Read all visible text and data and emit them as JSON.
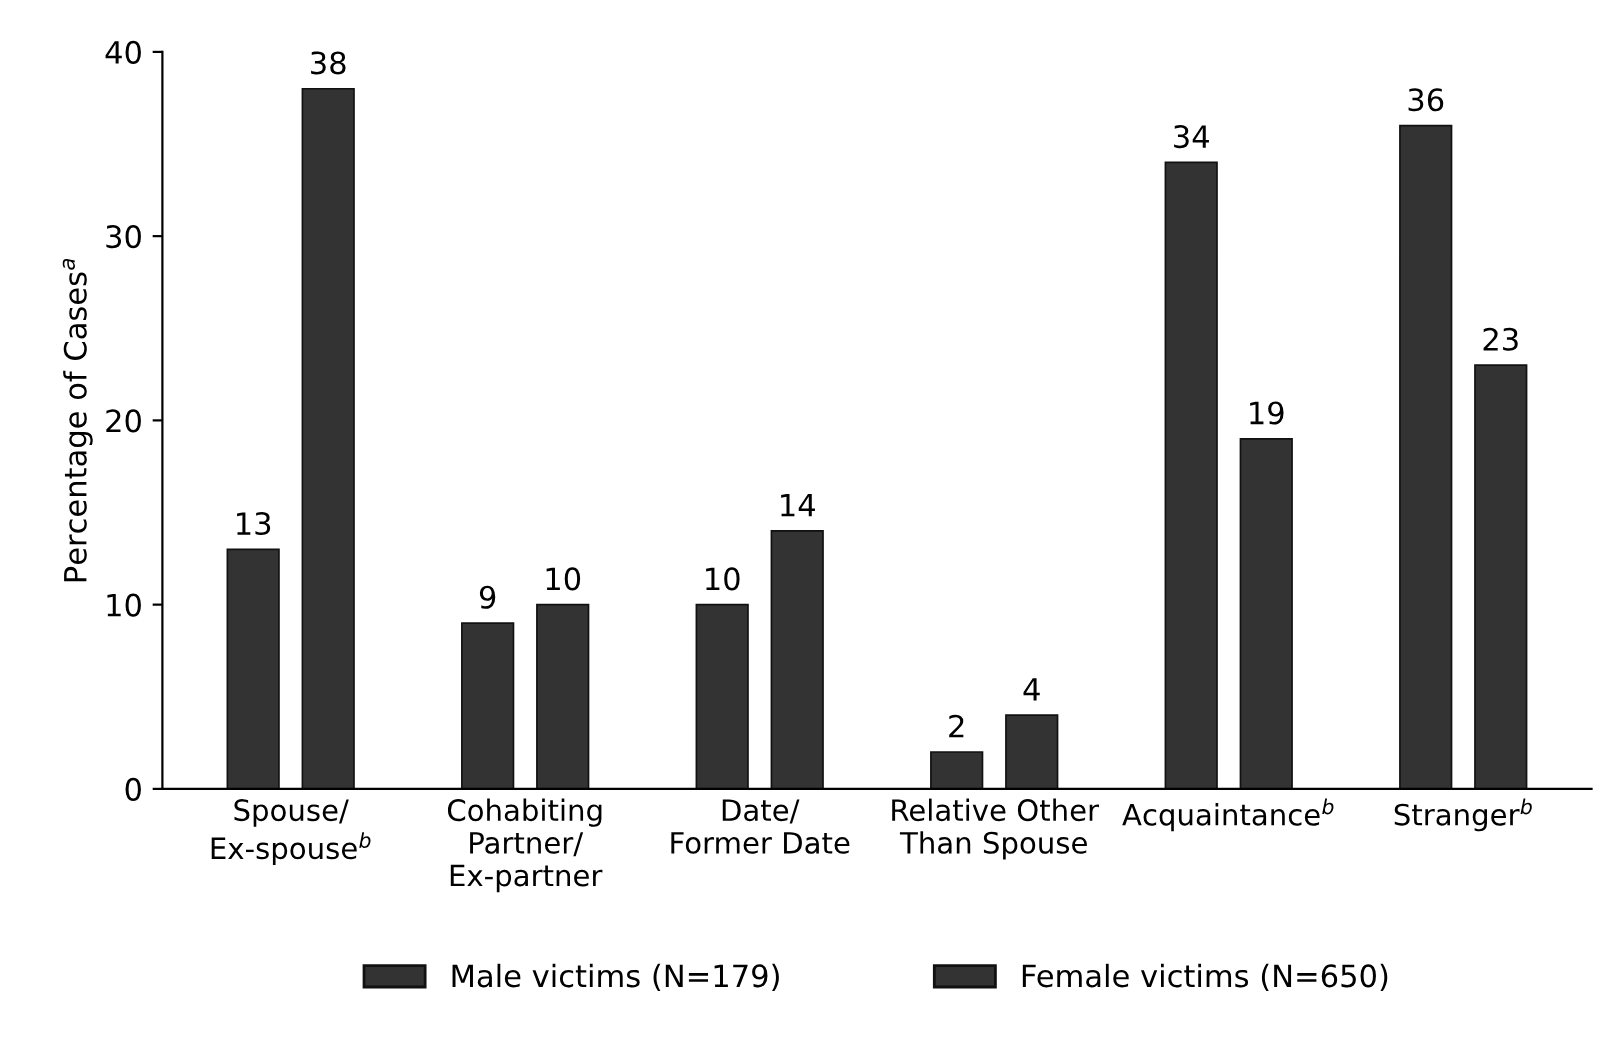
{
  "chart_data": {
    "type": "bar",
    "ylabel": "Percentage of Cases$^{a}$",
    "categories": [
      "Spouse/\nEx-spouse$^{b}$",
      "Cohabiting\nPartner/\nEx-partner",
      "Date/\nFormer Date",
      "Relative Other\nThan Spouse",
      "Acquaintance$^{b}$",
      "Stranger$^{b}$"
    ],
    "series": [
      {
        "name": "Male victims (N=179)",
        "color": "#333333",
        "values": [
          13,
          9,
          10,
          2,
          34,
          36
        ]
      },
      {
        "name": "Female victims (N=650)",
        "color": "#333333",
        "values": [
          38,
          10,
          14,
          4,
          19,
          23
        ]
      }
    ],
    "ylim": [
      0,
      40
    ],
    "yticks": [
      0,
      10,
      20,
      30,
      40
    ],
    "grid": false,
    "legend": "bottom",
    "data_labels": true
  }
}
